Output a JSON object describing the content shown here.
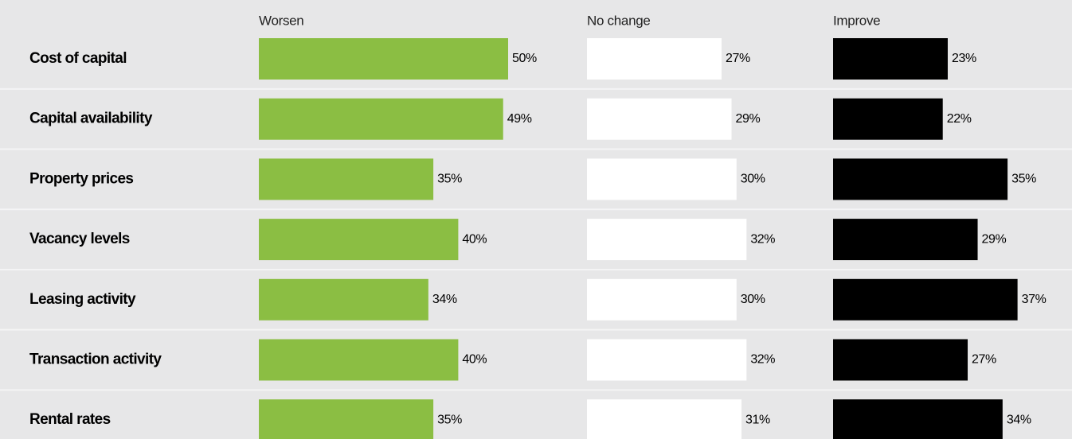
{
  "chart_data": {
    "type": "bar",
    "categories": [
      "Cost of capital",
      "Capital availability",
      "Property prices",
      "Vacancy levels",
      "Leasing activity",
      "Transaction activity",
      "Rental rates"
    ],
    "series": [
      {
        "name": "Worsen",
        "color": "#8bbe43",
        "values": [
          50,
          49,
          35,
          40,
          34,
          40,
          35
        ],
        "value_labels": [
          "50%",
          "49%",
          "35%",
          "40%",
          "34%",
          "40%",
          "35%"
        ]
      },
      {
        "name": "No change",
        "color": "#ffffff",
        "values": [
          27,
          29,
          30,
          32,
          30,
          32,
          31
        ],
        "value_labels": [
          "27%",
          "29%",
          "30%",
          "32%",
          "30%",
          "32%",
          "31%"
        ]
      },
      {
        "name": "Improve",
        "color": "#000000",
        "values": [
          23,
          22,
          35,
          29,
          37,
          27,
          34
        ],
        "value_labels": [
          "23%",
          "22%",
          "35%",
          "29%",
          "37%",
          "27%",
          "34%"
        ]
      }
    ]
  }
}
